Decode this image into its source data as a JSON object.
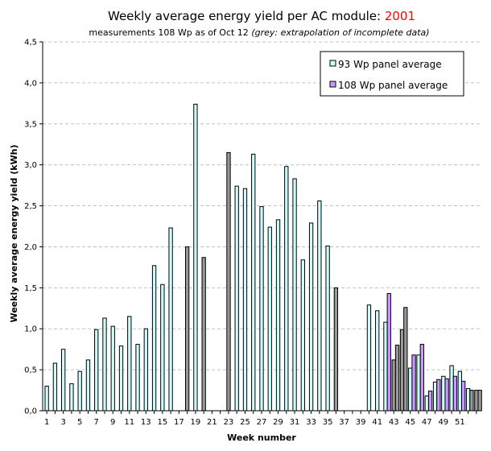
{
  "chart_data": {
    "type": "bar",
    "title_prefix": "Weekly average energy yield per AC module: ",
    "title_year": "2001",
    "subtitle_prefix": "measurements 108 Wp as of Oct 12 ",
    "subtitle_note": "(grey: extrapolation of incomplete data)",
    "xlabel": "Week number",
    "ylabel": "Weekly average energy yield (kWh)",
    "ylim": [
      0,
      4.5
    ],
    "ytick_labels": [
      "0,0",
      "0,5",
      "1,0",
      "1,5",
      "2,0",
      "2,5",
      "3,0",
      "3,5",
      "4,0",
      "4,5"
    ],
    "xtick_labels": [
      "1",
      "3",
      "5",
      "7",
      "9",
      "11",
      "13",
      "15",
      "17",
      "19",
      "21",
      "23",
      "25",
      "27",
      "29",
      "31",
      "33",
      "35",
      "37",
      "39",
      "41",
      "43",
      "45",
      "47",
      "49",
      "51"
    ],
    "grid": "horizontal dashed",
    "legend_position": "top-right",
    "colors": {
      "panel93": "#ccffff",
      "panel108": "#cc99ff",
      "extrapolated": "#999999",
      "grid": "#c0c0c0"
    },
    "series": [
      {
        "name": "93 Wp panel average",
        "color": "#ccffff",
        "weeks": [
          1,
          2,
          3,
          4,
          5,
          6,
          7,
          8,
          9,
          10,
          11,
          12,
          13,
          14,
          15,
          16,
          18,
          19,
          20,
          23,
          24,
          25,
          26,
          27,
          28,
          29,
          30,
          31,
          32,
          33,
          34,
          35,
          36,
          40,
          41,
          42,
          43,
          44,
          45,
          46,
          47,
          48,
          49,
          50,
          51,
          52,
          53
        ],
        "values": [
          0.3,
          0.58,
          0.75,
          0.33,
          0.48,
          0.62,
          0.99,
          1.13,
          1.03,
          0.79,
          1.15,
          0.81,
          1.0,
          1.77,
          1.54,
          2.23,
          2.0,
          3.74,
          1.87,
          3.15,
          2.74,
          2.71,
          3.13,
          2.49,
          2.24,
          2.33,
          2.98,
          2.83,
          1.84,
          2.29,
          2.56,
          2.01,
          1.5,
          1.29,
          1.22,
          1.08,
          0.62,
          0.99,
          0.52,
          0.68,
          0.18,
          0.35,
          0.42,
          0.55,
          0.48,
          0.27,
          0.25
        ],
        "extrapolated": [
          false,
          false,
          false,
          false,
          false,
          false,
          false,
          false,
          false,
          false,
          false,
          false,
          false,
          false,
          false,
          false,
          true,
          false,
          true,
          true,
          false,
          false,
          false,
          false,
          false,
          false,
          false,
          false,
          false,
          false,
          false,
          false,
          true,
          false,
          false,
          false,
          true,
          true,
          false,
          false,
          false,
          false,
          false,
          false,
          false,
          false,
          true
        ]
      },
      {
        "name": "108 Wp panel average",
        "color": "#cc99ff",
        "weeks": [
          42,
          43,
          44,
          45,
          46,
          47,
          48,
          49,
          50,
          51,
          52,
          53
        ],
        "values": [
          1.43,
          0.8,
          1.26,
          0.68,
          0.81,
          0.24,
          0.38,
          0.39,
          0.42,
          0.36,
          0.25,
          0.25
        ],
        "extrapolated": [
          false,
          true,
          true,
          false,
          false,
          false,
          false,
          false,
          false,
          false,
          true,
          true
        ]
      }
    ]
  }
}
